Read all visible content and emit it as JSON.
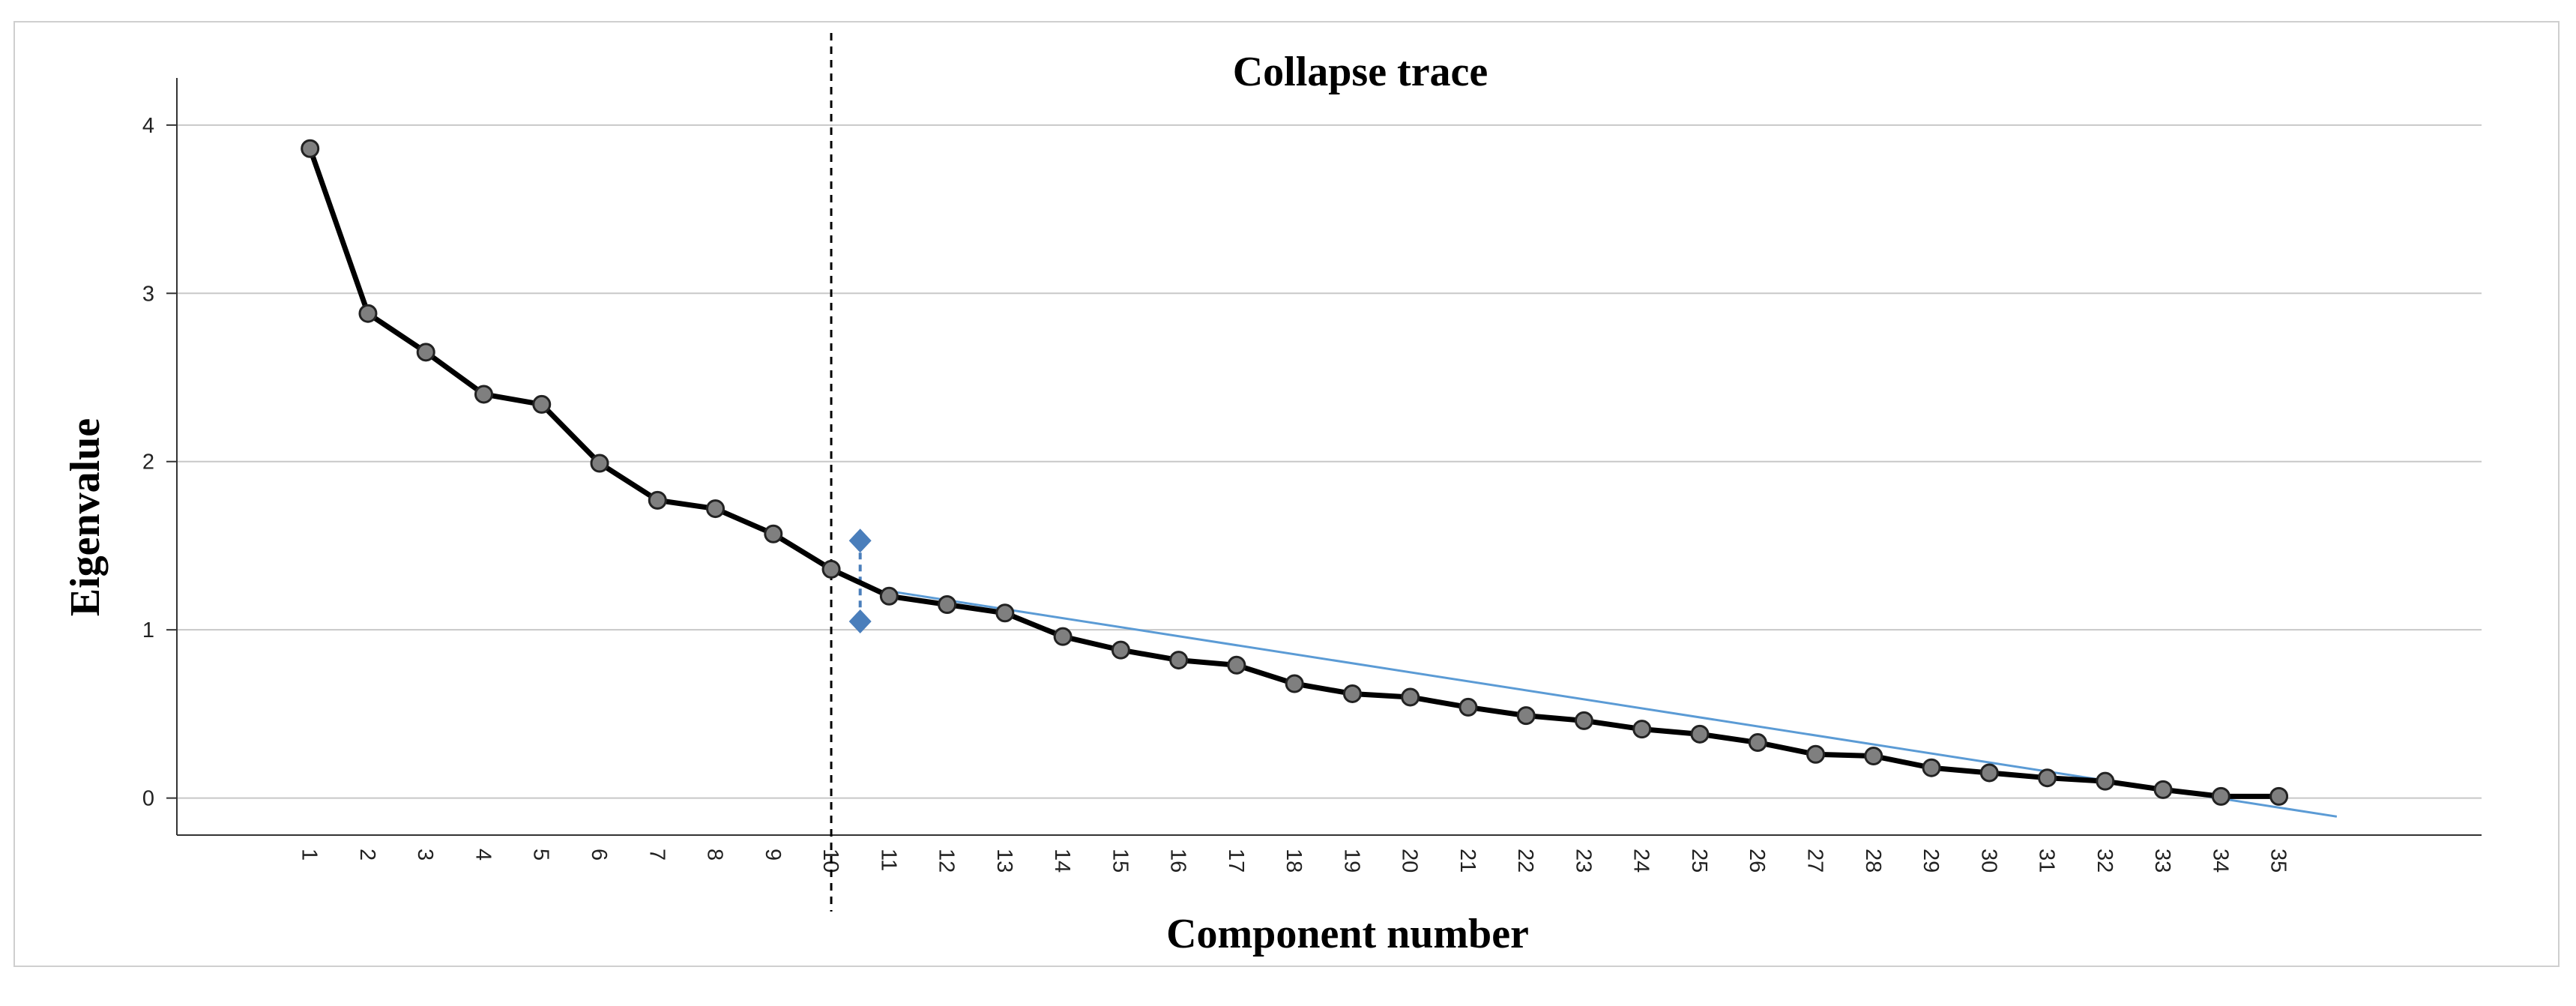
{
  "chart_data": {
    "type": "line",
    "title": "Collapse trace",
    "xlabel": "Component number",
    "ylabel": "Eigenvalue",
    "x": [
      1,
      2,
      3,
      4,
      5,
      6,
      7,
      8,
      9,
      10,
      11,
      12,
      13,
      14,
      15,
      16,
      17,
      18,
      19,
      20,
      21,
      22,
      23,
      24,
      25,
      26,
      27,
      28,
      29,
      30,
      31,
      32,
      33,
      34,
      35
    ],
    "x_tick_labels": [
      "1",
      "2",
      "3",
      "4",
      "5",
      "6",
      "7",
      "8",
      "9",
      "10",
      "11",
      "12",
      "13",
      "14",
      "15",
      "16",
      "17",
      "18",
      "19",
      "20",
      "21",
      "22",
      "23",
      "24",
      "25",
      "26",
      "27",
      "28",
      "29",
      "30",
      "31",
      "32",
      "33",
      "34",
      "35"
    ],
    "series": [
      {
        "values": [
          3.86,
          2.88,
          2.65,
          2.4,
          2.34,
          1.99,
          1.77,
          1.72,
          1.57,
          1.36,
          1.2,
          1.15,
          1.1,
          0.96,
          0.88,
          0.82,
          0.79,
          0.68,
          0.62,
          0.6,
          0.54,
          0.49,
          0.46,
          0.41,
          0.38,
          0.33,
          0.26,
          0.25,
          0.18,
          0.15,
          0.12,
          0.1,
          0.05,
          0.01,
          0.01
        ],
        "color": "#000000",
        "marker_color": "#7f7f7f"
      }
    ],
    "y_ticks": [
      0,
      1,
      2,
      3,
      4
    ],
    "y_tick_labels": [
      "0",
      "1",
      "2",
      "3",
      "4"
    ],
    "ylim": [
      -0.22,
      4.28
    ],
    "xlim": [
      -1.3,
      38.5
    ],
    "grid": "horizontal",
    "annotations": {
      "cutoff_line": {
        "x": 10,
        "style": "dashed",
        "color": "#000000"
      },
      "trend_line": {
        "from": [
          11,
          1.23
        ],
        "to": [
          36,
          -0.11
        ],
        "color": "#5b9bd5"
      },
      "gap_marker": {
        "x": 10.5,
        "y_top": 1.53,
        "y_bottom": 1.05,
        "color": "#4a7ebb"
      }
    }
  }
}
